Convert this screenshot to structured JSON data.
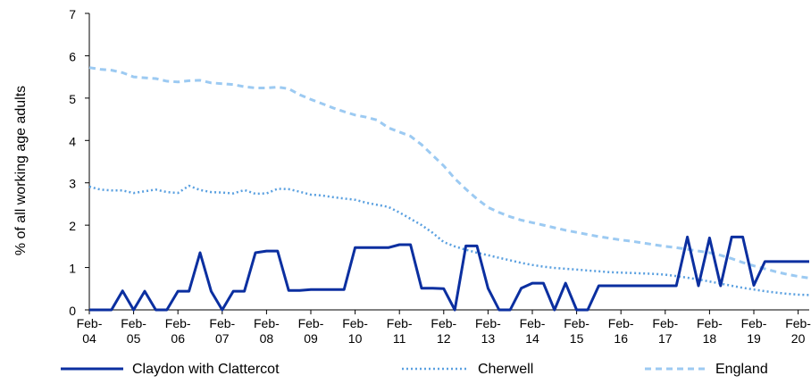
{
  "chart_data": {
    "type": "line",
    "ylabel": "% of all working age adults",
    "ylim": [
      0,
      7
    ],
    "yticks": [
      "0",
      "1",
      "2",
      "3",
      "4",
      "5",
      "6",
      "7"
    ],
    "x_tick_labels": [
      {
        "top": "Feb-",
        "bottom": "04"
      },
      {
        "top": "Feb-",
        "bottom": "05"
      },
      {
        "top": "Feb-",
        "bottom": "06"
      },
      {
        "top": "Feb-",
        "bottom": "07"
      },
      {
        "top": "Feb-",
        "bottom": "08"
      },
      {
        "top": "Feb-",
        "bottom": "09"
      },
      {
        "top": "Feb-",
        "bottom": "10"
      },
      {
        "top": "Feb-",
        "bottom": "11"
      },
      {
        "top": "Feb-",
        "bottom": "12"
      },
      {
        "top": "Feb-",
        "bottom": "13"
      },
      {
        "top": "Feb-",
        "bottom": "14"
      },
      {
        "top": "Feb-",
        "bottom": "15"
      },
      {
        "top": "Feb-",
        "bottom": "16"
      },
      {
        "top": "Feb-",
        "bottom": "17"
      },
      {
        "top": "Feb-",
        "bottom": "18"
      },
      {
        "top": "Feb-",
        "bottom": "19"
      },
      {
        "top": "Feb-",
        "bottom": "20"
      }
    ],
    "grid": false,
    "legend_position": "bottom",
    "x_unit": "quarters from Feb-04",
    "series": [
      {
        "name": "Claydon with Clattercot",
        "color": "#0b2fa0",
        "style": "solid",
        "points": [
          [
            0,
            0
          ],
          [
            1,
            0
          ],
          [
            2,
            0
          ],
          [
            3,
            0.45
          ],
          [
            4,
            0
          ],
          [
            5,
            0.44
          ],
          [
            6,
            0
          ],
          [
            7,
            0
          ],
          [
            8,
            0.44
          ],
          [
            9,
            0.44
          ],
          [
            10,
            1.35
          ],
          [
            11,
            0.44
          ],
          [
            12,
            0
          ],
          [
            13,
            0.44
          ],
          [
            14,
            0.44
          ],
          [
            15,
            1.35
          ],
          [
            16,
            1.39
          ],
          [
            17,
            1.39
          ],
          [
            18,
            0.46
          ],
          [
            19,
            0.46
          ],
          [
            20,
            0.48
          ],
          [
            21,
            0.48
          ],
          [
            22,
            0.48
          ],
          [
            23,
            0.48
          ],
          [
            24,
            1.47
          ],
          [
            25,
            1.47
          ],
          [
            26,
            1.47
          ],
          [
            27,
            1.47
          ],
          [
            28,
            1.54
          ],
          [
            29,
            1.54
          ],
          [
            30,
            0.51
          ],
          [
            31,
            0.51
          ],
          [
            32,
            0.5
          ],
          [
            33,
            0
          ],
          [
            34,
            1.51
          ],
          [
            35,
            1.51
          ],
          [
            36,
            0.51
          ],
          [
            37,
            0
          ],
          [
            38,
            0
          ],
          [
            39,
            0.51
          ],
          [
            40,
            0.63
          ],
          [
            41,
            0.63
          ],
          [
            42,
            0
          ],
          [
            43,
            0.63
          ],
          [
            44,
            0
          ],
          [
            45,
            0
          ],
          [
            46,
            0.57
          ],
          [
            47,
            0.57
          ],
          [
            48,
            0.57
          ],
          [
            49,
            0.57
          ],
          [
            50,
            0.57
          ],
          [
            51,
            0.57
          ],
          [
            52,
            0.57
          ],
          [
            53,
            0.57
          ],
          [
            54,
            1.72
          ],
          [
            55,
            0.57
          ],
          [
            56,
            1.7
          ],
          [
            57,
            0.57
          ],
          [
            58,
            1.72
          ],
          [
            59,
            1.72
          ],
          [
            60,
            0.58
          ],
          [
            61,
            1.14
          ],
          [
            62,
            1.14
          ],
          [
            63,
            1.14
          ],
          [
            64,
            1.14
          ],
          [
            65,
            1.14
          ]
        ]
      },
      {
        "name": "Cherwell",
        "color": "#5aa0e0",
        "style": "dotted",
        "points": [
          [
            0,
            2.91
          ],
          [
            1,
            2.84
          ],
          [
            2,
            2.82
          ],
          [
            3,
            2.82
          ],
          [
            4,
            2.76
          ],
          [
            5,
            2.8
          ],
          [
            6,
            2.84
          ],
          [
            7,
            2.78
          ],
          [
            8,
            2.76
          ],
          [
            9,
            2.93
          ],
          [
            10,
            2.83
          ],
          [
            11,
            2.78
          ],
          [
            12,
            2.77
          ],
          [
            13,
            2.75
          ],
          [
            14,
            2.83
          ],
          [
            15,
            2.74
          ],
          [
            16,
            2.75
          ],
          [
            17,
            2.86
          ],
          [
            18,
            2.85
          ],
          [
            19,
            2.79
          ],
          [
            20,
            2.72
          ],
          [
            21,
            2.7
          ],
          [
            22,
            2.66
          ],
          [
            23,
            2.63
          ],
          [
            24,
            2.6
          ],
          [
            25,
            2.53
          ],
          [
            26,
            2.48
          ],
          [
            27,
            2.43
          ],
          [
            28,
            2.3
          ],
          [
            29,
            2.15
          ],
          [
            30,
            2.0
          ],
          [
            31,
            1.82
          ],
          [
            32,
            1.6
          ],
          [
            33,
            1.5
          ],
          [
            34,
            1.42
          ],
          [
            35,
            1.35
          ],
          [
            36,
            1.29
          ],
          [
            37,
            1.23
          ],
          [
            38,
            1.17
          ],
          [
            39,
            1.11
          ],
          [
            40,
            1.06
          ],
          [
            41,
            1.02
          ],
          [
            42,
            0.99
          ],
          [
            43,
            0.97
          ],
          [
            44,
            0.95
          ],
          [
            45,
            0.93
          ],
          [
            46,
            0.91
          ],
          [
            47,
            0.89
          ],
          [
            48,
            0.88
          ],
          [
            49,
            0.87
          ],
          [
            50,
            0.86
          ],
          [
            51,
            0.85
          ],
          [
            52,
            0.83
          ],
          [
            53,
            0.8
          ],
          [
            54,
            0.76
          ],
          [
            55,
            0.72
          ],
          [
            56,
            0.67
          ],
          [
            57,
            0.62
          ],
          [
            58,
            0.57
          ],
          [
            59,
            0.52
          ],
          [
            60,
            0.48
          ],
          [
            61,
            0.44
          ],
          [
            62,
            0.41
          ],
          [
            63,
            0.38
          ],
          [
            64,
            0.36
          ],
          [
            65,
            0.35
          ]
        ]
      },
      {
        "name": "England",
        "color": "#9ccaf2",
        "style": "dashed",
        "points": [
          [
            0,
            5.72
          ],
          [
            1,
            5.68
          ],
          [
            2,
            5.66
          ],
          [
            3,
            5.6
          ],
          [
            4,
            5.5
          ],
          [
            5,
            5.48
          ],
          [
            6,
            5.46
          ],
          [
            7,
            5.4
          ],
          [
            8,
            5.38
          ],
          [
            9,
            5.41
          ],
          [
            10,
            5.42
          ],
          [
            11,
            5.36
          ],
          [
            12,
            5.34
          ],
          [
            13,
            5.32
          ],
          [
            14,
            5.27
          ],
          [
            15,
            5.24
          ],
          [
            16,
            5.24
          ],
          [
            17,
            5.26
          ],
          [
            18,
            5.22
          ],
          [
            19,
            5.08
          ],
          [
            20,
            4.97
          ],
          [
            21,
            4.87
          ],
          [
            22,
            4.77
          ],
          [
            23,
            4.68
          ],
          [
            24,
            4.6
          ],
          [
            25,
            4.55
          ],
          [
            26,
            4.48
          ],
          [
            27,
            4.3
          ],
          [
            28,
            4.2
          ],
          [
            29,
            4.1
          ],
          [
            30,
            3.9
          ],
          [
            31,
            3.65
          ],
          [
            32,
            3.4
          ],
          [
            33,
            3.1
          ],
          [
            34,
            2.85
          ],
          [
            35,
            2.62
          ],
          [
            36,
            2.42
          ],
          [
            37,
            2.3
          ],
          [
            38,
            2.2
          ],
          [
            39,
            2.12
          ],
          [
            40,
            2.06
          ],
          [
            41,
            2.0
          ],
          [
            42,
            1.94
          ],
          [
            43,
            1.88
          ],
          [
            44,
            1.83
          ],
          [
            45,
            1.78
          ],
          [
            46,
            1.73
          ],
          [
            47,
            1.69
          ],
          [
            48,
            1.65
          ],
          [
            49,
            1.62
          ],
          [
            50,
            1.58
          ],
          [
            51,
            1.54
          ],
          [
            52,
            1.5
          ],
          [
            53,
            1.47
          ],
          [
            54,
            1.43
          ],
          [
            55,
            1.39
          ],
          [
            56,
            1.35
          ],
          [
            57,
            1.29
          ],
          [
            58,
            1.21
          ],
          [
            59,
            1.12
          ],
          [
            60,
            1.04
          ],
          [
            61,
            0.97
          ],
          [
            62,
            0.9
          ],
          [
            63,
            0.84
          ],
          [
            64,
            0.79
          ],
          [
            65,
            0.75
          ]
        ]
      }
    ]
  }
}
